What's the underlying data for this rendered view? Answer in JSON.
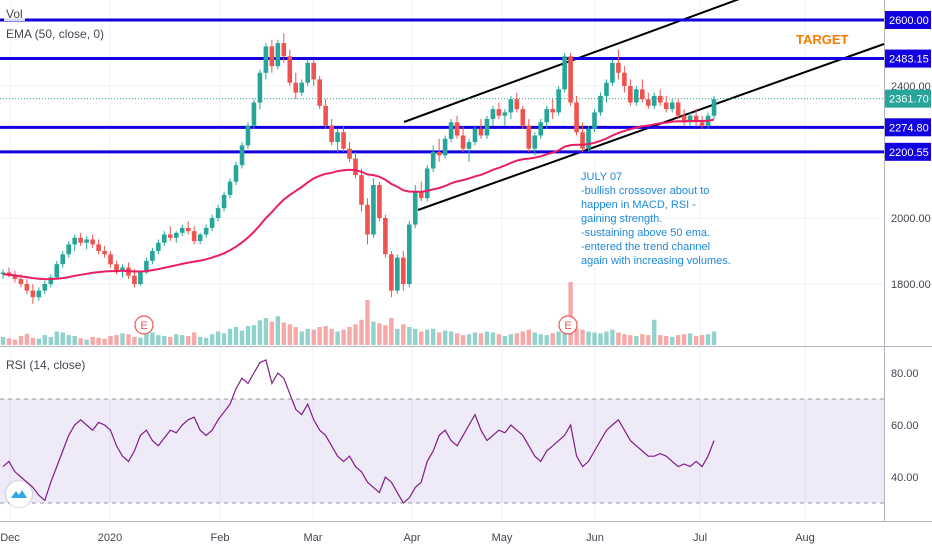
{
  "chart_data": [
    {
      "type": "candlestick",
      "indicators": {
        "vol_label": "Vol",
        "ema_label": "EMA (50, close, 0)"
      },
      "x_labels": [
        "Dec",
        "2020",
        "Feb",
        "Mar",
        "Apr",
        "May",
        "Jun",
        "Jul",
        "Aug"
      ],
      "y_ticks": [
        "1800.00",
        "2000.00",
        "2200.00",
        "2400.00",
        "2600.00"
      ],
      "ylim": [
        1610,
        2660
      ],
      "levels": [
        {
          "value": 2600.0,
          "label": "2600.00"
        },
        {
          "value": 2483.15,
          "label": "2483.15"
        },
        {
          "value": 2274.8,
          "label": "2274.80"
        },
        {
          "value": 2200.55,
          "label": "2200.55"
        }
      ],
      "last_price": {
        "value": 2361.7,
        "label": "2361.70"
      },
      "target_label": "TARGET",
      "annotation": "JULY 07\n-bullish crossover about to happen in MACD, RSI -gaining strength.\n-sustaining above 50 ema.\n-entered the trend channel again with increasing volumes.",
      "earnings_markers": [
        "E",
        "E"
      ],
      "ohlc": [
        [
          1830,
          1845,
          1815,
          1835
        ],
        [
          1835,
          1850,
          1820,
          1825
        ],
        [
          1825,
          1840,
          1805,
          1815
        ],
        [
          1815,
          1830,
          1790,
          1800
        ],
        [
          1800,
          1815,
          1770,
          1780
        ],
        [
          1780,
          1800,
          1740,
          1760
        ],
        [
          1760,
          1790,
          1750,
          1780
        ],
        [
          1780,
          1810,
          1770,
          1800
        ],
        [
          1800,
          1830,
          1790,
          1820
        ],
        [
          1820,
          1870,
          1815,
          1860
        ],
        [
          1860,
          1900,
          1850,
          1890
        ],
        [
          1890,
          1930,
          1880,
          1920
        ],
        [
          1920,
          1950,
          1900,
          1940
        ],
        [
          1940,
          1955,
          1915,
          1925
        ],
        [
          1925,
          1945,
          1905,
          1935
        ],
        [
          1935,
          1950,
          1910,
          1920
        ],
        [
          1920,
          1935,
          1890,
          1900
        ],
        [
          1900,
          1915,
          1880,
          1890
        ],
        [
          1890,
          1900,
          1850,
          1860
        ],
        [
          1860,
          1870,
          1830,
          1840
        ],
        [
          1840,
          1860,
          1820,
          1850
        ],
        [
          1850,
          1865,
          1815,
          1825
        ],
        [
          1825,
          1845,
          1790,
          1800
        ],
        [
          1800,
          1840,
          1795,
          1835
        ],
        [
          1835,
          1880,
          1830,
          1870
        ],
        [
          1870,
          1910,
          1860,
          1900
        ],
        [
          1900,
          1935,
          1890,
          1925
        ],
        [
          1925,
          1960,
          1915,
          1950
        ],
        [
          1950,
          1975,
          1930,
          1940
        ],
        [
          1940,
          1960,
          1925,
          1955
        ],
        [
          1955,
          1980,
          1945,
          1970
        ],
        [
          1970,
          1990,
          1950,
          1960
        ],
        [
          1960,
          1975,
          1920,
          1930
        ],
        [
          1930,
          1955,
          1920,
          1950
        ],
        [
          1950,
          1980,
          1940,
          1970
        ],
        [
          1970,
          2010,
          1960,
          2000
        ],
        [
          2000,
          2040,
          1990,
          2030
        ],
        [
          2030,
          2080,
          2020,
          2070
        ],
        [
          2070,
          2120,
          2060,
          2110
        ],
        [
          2110,
          2170,
          2100,
          2160
        ],
        [
          2160,
          2230,
          2150,
          2220
        ],
        [
          2220,
          2290,
          2210,
          2280
        ],
        [
          2280,
          2360,
          2270,
          2350
        ],
        [
          2350,
          2450,
          2330,
          2440
        ],
        [
          2440,
          2530,
          2420,
          2520
        ],
        [
          2520,
          2540,
          2440,
          2460
        ],
        [
          2460,
          2540,
          2450,
          2530
        ],
        [
          2530,
          2560,
          2470,
          2490
        ],
        [
          2490,
          2510,
          2400,
          2410
        ],
        [
          2410,
          2440,
          2360,
          2380
        ],
        [
          2380,
          2420,
          2370,
          2410
        ],
        [
          2410,
          2480,
          2400,
          2470
        ],
        [
          2470,
          2480,
          2400,
          2420
        ],
        [
          2420,
          2430,
          2330,
          2340
        ],
        [
          2340,
          2360,
          2270,
          2280
        ],
        [
          2280,
          2300,
          2220,
          2230
        ],
        [
          2230,
          2270,
          2200,
          2260
        ],
        [
          2260,
          2280,
          2200,
          2210
        ],
        [
          2210,
          2230,
          2170,
          2180
        ],
        [
          2180,
          2200,
          2120,
          2130
        ],
        [
          2130,
          2150,
          2020,
          2040
        ],
        [
          2040,
          2060,
          1920,
          1950
        ],
        [
          1950,
          2120,
          1940,
          2100
        ],
        [
          2100,
          2110,
          1990,
          2000
        ],
        [
          2000,
          2010,
          1880,
          1890
        ],
        [
          1890,
          1900,
          1760,
          1780
        ],
        [
          1780,
          1890,
          1770,
          1880
        ],
        [
          1880,
          1900,
          1780,
          1800
        ],
        [
          1800,
          1990,
          1790,
          1980
        ],
        [
          1980,
          2100,
          1970,
          2080
        ],
        [
          2080,
          2110,
          2050,
          2060
        ],
        [
          2060,
          2160,
          2050,
          2150
        ],
        [
          2150,
          2220,
          2140,
          2200
        ],
        [
          2200,
          2240,
          2170,
          2190
        ],
        [
          2190,
          2250,
          2180,
          2240
        ],
        [
          2240,
          2300,
          2230,
          2290
        ],
        [
          2290,
          2310,
          2240,
          2250
        ],
        [
          2250,
          2280,
          2200,
          2210
        ],
        [
          2210,
          2240,
          2170,
          2230
        ],
        [
          2230,
          2280,
          2220,
          2270
        ],
        [
          2270,
          2300,
          2240,
          2250
        ],
        [
          2250,
          2310,
          2240,
          2300
        ],
        [
          2300,
          2340,
          2280,
          2330
        ],
        [
          2330,
          2350,
          2300,
          2310
        ],
        [
          2310,
          2330,
          2280,
          2320
        ],
        [
          2320,
          2370,
          2300,
          2360
        ],
        [
          2360,
          2380,
          2320,
          2330
        ],
        [
          2330,
          2340,
          2270,
          2280
        ],
        [
          2280,
          2300,
          2200,
          2210
        ],
        [
          2210,
          2260,
          2190,
          2250
        ],
        [
          2250,
          2300,
          2240,
          2290
        ],
        [
          2290,
          2340,
          2270,
          2330
        ],
        [
          2330,
          2360,
          2300,
          2320
        ],
        [
          2320,
          2400,
          2310,
          2390
        ],
        [
          2390,
          2500,
          2380,
          2490
        ],
        [
          2490,
          2500,
          2340,
          2350
        ],
        [
          2350,
          2370,
          2250,
          2260
        ],
        [
          2260,
          2290,
          2200,
          2210
        ],
        [
          2210,
          2280,
          2200,
          2270
        ],
        [
          2270,
          2330,
          2260,
          2320
        ],
        [
          2320,
          2380,
          2310,
          2370
        ],
        [
          2370,
          2420,
          2350,
          2410
        ],
        [
          2410,
          2480,
          2400,
          2470
        ],
        [
          2470,
          2510,
          2420,
          2440
        ],
        [
          2440,
          2460,
          2380,
          2400
        ],
        [
          2400,
          2420,
          2340,
          2350
        ],
        [
          2350,
          2400,
          2340,
          2390
        ],
        [
          2390,
          2420,
          2350,
          2360
        ],
        [
          2360,
          2380,
          2330,
          2340
        ],
        [
          2340,
          2380,
          2330,
          2370
        ],
        [
          2370,
          2390,
          2340,
          2350
        ],
        [
          2350,
          2370,
          2320,
          2330
        ],
        [
          2330,
          2360,
          2320,
          2350
        ],
        [
          2350,
          2360,
          2300,
          2310
        ],
        [
          2310,
          2330,
          2280,
          2290
        ],
        [
          2290,
          2320,
          2280,
          2310
        ],
        [
          2310,
          2330,
          2280,
          2290
        ],
        [
          2290,
          2310,
          2270,
          2280
        ],
        [
          2280,
          2320,
          2270,
          2310
        ],
        [
          2310,
          2370,
          2300,
          2360
        ]
      ],
      "ema50": [
        1830,
        1828,
        1826,
        1823,
        1821,
        1818,
        1816,
        1815,
        1815,
        1816,
        1818,
        1821,
        1825,
        1828,
        1831,
        1834,
        1836,
        1838,
        1839,
        1839,
        1840,
        1839,
        1838,
        1838,
        1839,
        1842,
        1845,
        1849,
        1853,
        1857,
        1861,
        1865,
        1868,
        1871,
        1875,
        1880,
        1886,
        1893,
        1902,
        1913,
        1926,
        1941,
        1958,
        1978,
        2000,
        2018,
        2038,
        2056,
        2070,
        2082,
        2094,
        2108,
        2120,
        2128,
        2134,
        2137,
        2142,
        2145,
        2146,
        2145,
        2140,
        2132,
        2130,
        2125,
        2116,
        2103,
        2095,
        2084,
        2080,
        2080,
        2079,
        2082,
        2087,
        2091,
        2097,
        2105,
        2111,
        2115,
        2120,
        2126,
        2131,
        2138,
        2146,
        2152,
        2159,
        2167,
        2174,
        2178,
        2180,
        2183,
        2187,
        2193,
        2198,
        2205,
        2216,
        2221,
        2222,
        2222,
        2224,
        2228,
        2234,
        2241,
        2250,
        2258,
        2264,
        2269,
        2274,
        2278,
        2280,
        2284,
        2287,
        2289,
        2292,
        2293,
        2293,
        2294,
        2294,
        2294,
        2295,
        2298
      ],
      "volume": [
        0.18,
        0.15,
        0.12,
        0.2,
        0.25,
        0.16,
        0.14,
        0.22,
        0.18,
        0.3,
        0.28,
        0.22,
        0.2,
        0.15,
        0.12,
        0.18,
        0.16,
        0.14,
        0.2,
        0.22,
        0.26,
        0.24,
        0.18,
        0.16,
        0.3,
        0.28,
        0.22,
        0.2,
        0.18,
        0.24,
        0.22,
        0.2,
        0.28,
        0.18,
        0.16,
        0.24,
        0.3,
        0.26,
        0.36,
        0.4,
        0.32,
        0.42,
        0.44,
        0.55,
        0.6,
        0.52,
        0.64,
        0.5,
        0.46,
        0.4,
        0.3,
        0.36,
        0.34,
        0.4,
        0.42,
        0.36,
        0.3,
        0.34,
        0.4,
        0.46,
        0.56,
        1.0,
        0.52,
        0.48,
        0.44,
        0.6,
        0.36,
        0.46,
        0.4,
        0.36,
        0.3,
        0.34,
        0.36,
        0.28,
        0.32,
        0.3,
        0.26,
        0.22,
        0.24,
        0.28,
        0.26,
        0.3,
        0.28,
        0.24,
        0.2,
        0.24,
        0.26,
        0.3,
        0.34,
        0.28,
        0.24,
        0.22,
        0.26,
        0.3,
        0.4,
        1.4,
        0.36,
        0.34,
        0.3,
        0.28,
        0.26,
        0.3,
        0.34,
        0.28,
        0.24,
        0.22,
        0.2,
        0.24,
        0.22,
        0.56,
        0.22,
        0.2,
        0.18,
        0.22,
        0.24,
        0.26,
        0.2,
        0.22,
        0.24,
        0.3
      ]
    },
    {
      "type": "line",
      "title": "RSI (14, close)",
      "y_ticks": [
        "40.00",
        "60.00",
        "80.00"
      ],
      "ylim": [
        20,
        90
      ],
      "band": [
        30,
        70
      ],
      "values": [
        44,
        46,
        42,
        40,
        38,
        36,
        33,
        31,
        38,
        44,
        50,
        56,
        60,
        62,
        60,
        58,
        61,
        60,
        58,
        52,
        48,
        46,
        50,
        56,
        58,
        54,
        52,
        55,
        58,
        57,
        60,
        62,
        63,
        58,
        56,
        58,
        62,
        65,
        68,
        74,
        78,
        76,
        80,
        84,
        85,
        76,
        80,
        78,
        72,
        66,
        64,
        68,
        62,
        58,
        56,
        52,
        48,
        46,
        48,
        44,
        42,
        38,
        36,
        34,
        40,
        38,
        34,
        30,
        32,
        36,
        38,
        46,
        50,
        56,
        58,
        54,
        52,
        56,
        60,
        64,
        58,
        54,
        56,
        58,
        57,
        60,
        58,
        56,
        52,
        48,
        46,
        50,
        52,
        54,
        56,
        60,
        48,
        44,
        46,
        50,
        54,
        58,
        60,
        62,
        58,
        54,
        52,
        50,
        48,
        48,
        49,
        48,
        46,
        44,
        45,
        44,
        46,
        44,
        48,
        54
      ]
    }
  ]
}
